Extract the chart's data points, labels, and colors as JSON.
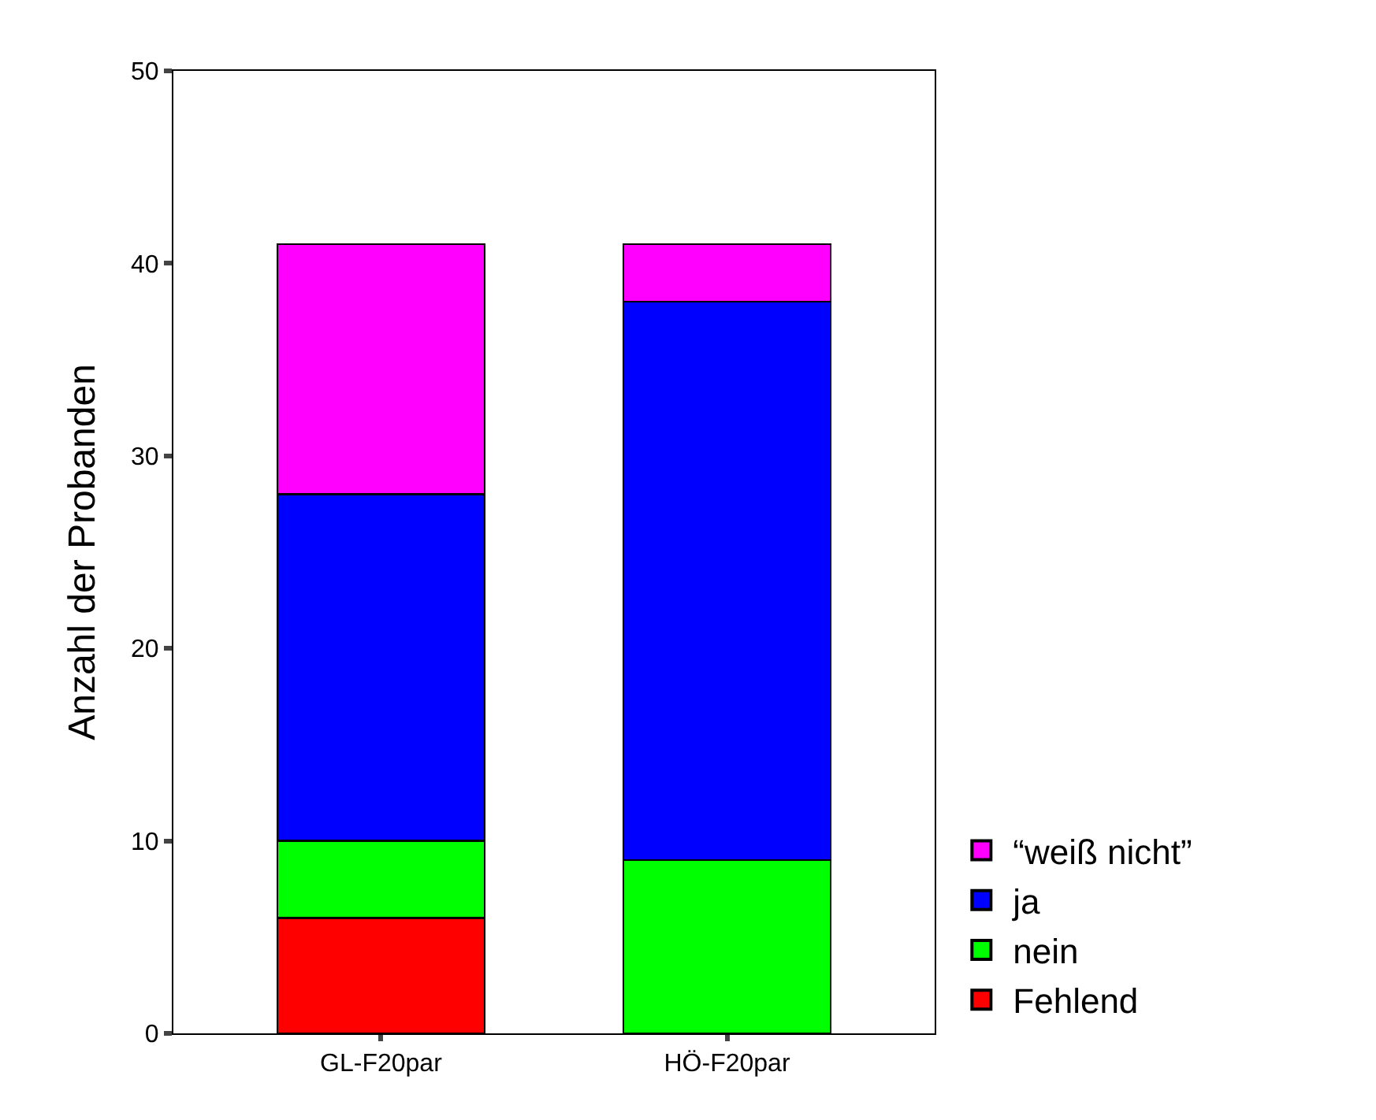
{
  "chart_data": {
    "type": "bar",
    "stacked": true,
    "ylabel": "Anzahl der Probanden",
    "categories": [
      "GL-F20par",
      "HÖ-F20par"
    ],
    "series": [
      {
        "name": "Fehlend",
        "color": "#ff0000",
        "values": [
          6,
          0
        ]
      },
      {
        "name": "nein",
        "color": "#00ff00",
        "values": [
          4,
          9
        ]
      },
      {
        "name": "ja",
        "color": "#0000ff",
        "values": [
          18,
          29
        ]
      },
      {
        "name": "“weiß nicht”",
        "color": "#ff00ff",
        "values": [
          13,
          3
        ]
      }
    ],
    "ylim": [
      0,
      50
    ],
    "yticks": [
      0,
      10,
      20,
      30,
      40,
      50
    ],
    "legend": "right"
  }
}
